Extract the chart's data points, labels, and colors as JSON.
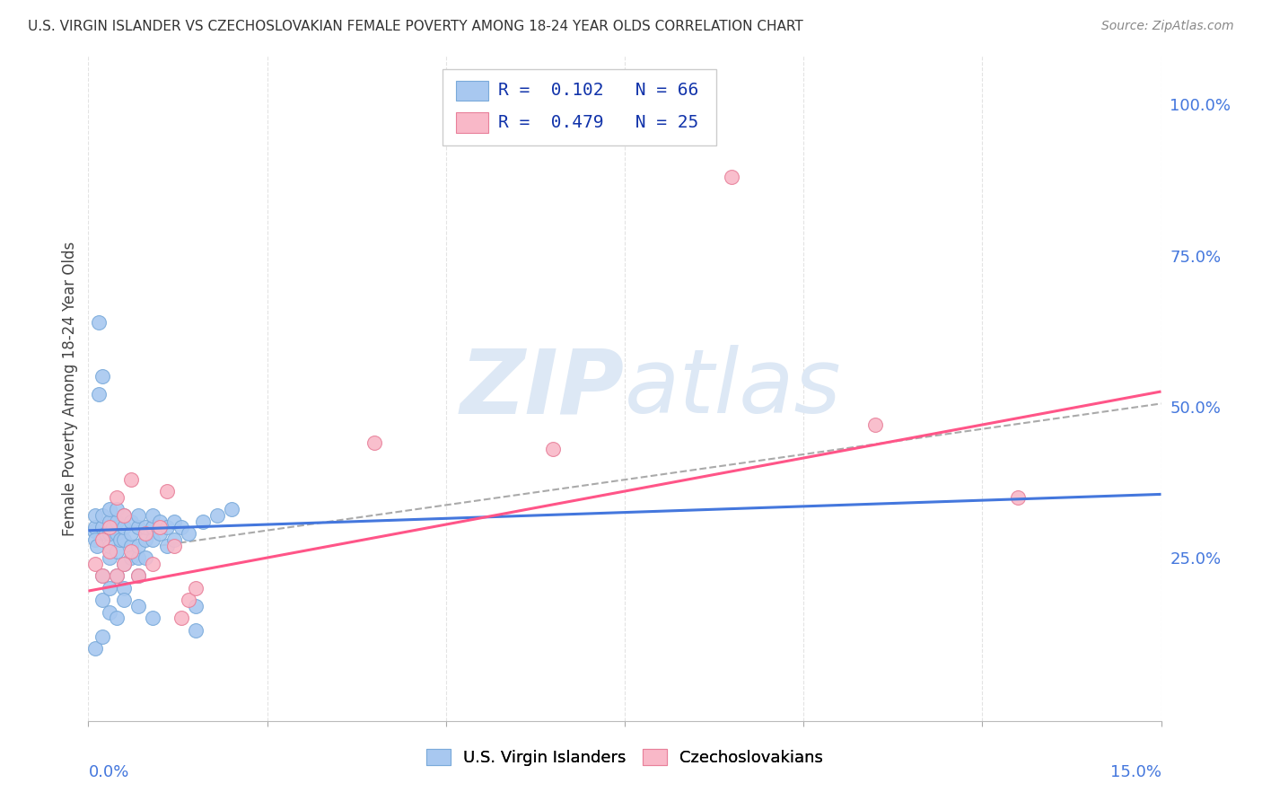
{
  "title": "U.S. VIRGIN ISLANDER VS CZECHOSLOVAKIAN FEMALE POVERTY AMONG 18-24 YEAR OLDS CORRELATION CHART",
  "source": "Source: ZipAtlas.com",
  "ylabel": "Female Poverty Among 18-24 Year Olds",
  "vi_color": "#a8c8f0",
  "vi_edge_color": "#7aaada",
  "cz_color": "#f9b8c8",
  "cz_edge_color": "#e8809a",
  "vi_line_color": "#4477dd",
  "cz_line_color": "#ff5588",
  "ref_line_color": "#aaaaaa",
  "watermark_color": "#dde8f5",
  "background_color": "#ffffff",
  "grid_color": "#dddddd",
  "right_tick_color": "#4477dd",
  "title_color": "#333333",
  "source_color": "#888888",
  "legend_text_color": "#1133aa",
  "xlim": [
    0.0,
    0.15
  ],
  "ylim": [
    -0.02,
    1.08
  ],
  "right_yticks": [
    1.0,
    0.75,
    0.5,
    0.25
  ],
  "right_yticklabels": [
    "100.0%",
    "75.0%",
    "50.0%",
    "25.0%"
  ],
  "vi_trend": [
    0.0,
    0.15,
    0.295,
    0.355
  ],
  "cz_trend": [
    0.0,
    0.15,
    0.195,
    0.525
  ],
  "ref_trend": [
    0.01,
    0.15,
    0.27,
    0.505
  ],
  "vi_x": [
    0.0008,
    0.001,
    0.001,
    0.001,
    0.0012,
    0.0015,
    0.0015,
    0.002,
    0.002,
    0.002,
    0.002,
    0.002,
    0.0025,
    0.003,
    0.003,
    0.003,
    0.003,
    0.003,
    0.003,
    0.003,
    0.0035,
    0.004,
    0.004,
    0.004,
    0.004,
    0.004,
    0.0045,
    0.005,
    0.005,
    0.005,
    0.005,
    0.005,
    0.005,
    0.006,
    0.006,
    0.006,
    0.006,
    0.007,
    0.007,
    0.007,
    0.007,
    0.007,
    0.008,
    0.008,
    0.008,
    0.009,
    0.009,
    0.009,
    0.01,
    0.01,
    0.011,
    0.011,
    0.012,
    0.012,
    0.013,
    0.014,
    0.015,
    0.016,
    0.018,
    0.02,
    0.001,
    0.002,
    0.004,
    0.007,
    0.009,
    0.015
  ],
  "vi_y": [
    0.295,
    0.3,
    0.32,
    0.28,
    0.27,
    0.52,
    0.64,
    0.3,
    0.32,
    0.55,
    0.22,
    0.18,
    0.29,
    0.25,
    0.27,
    0.29,
    0.31,
    0.33,
    0.2,
    0.16,
    0.3,
    0.26,
    0.29,
    0.31,
    0.33,
    0.22,
    0.28,
    0.24,
    0.28,
    0.3,
    0.32,
    0.2,
    0.18,
    0.27,
    0.29,
    0.31,
    0.25,
    0.25,
    0.27,
    0.3,
    0.32,
    0.22,
    0.28,
    0.3,
    0.25,
    0.28,
    0.3,
    0.32,
    0.29,
    0.31,
    0.3,
    0.27,
    0.31,
    0.28,
    0.3,
    0.29,
    0.13,
    0.31,
    0.32,
    0.33,
    0.1,
    0.12,
    0.15,
    0.17,
    0.15,
    0.17
  ],
  "cz_x": [
    0.001,
    0.002,
    0.002,
    0.003,
    0.003,
    0.004,
    0.004,
    0.005,
    0.005,
    0.006,
    0.006,
    0.007,
    0.008,
    0.009,
    0.01,
    0.011,
    0.012,
    0.013,
    0.014,
    0.015,
    0.04,
    0.065,
    0.09,
    0.11,
    0.13
  ],
  "cz_y": [
    0.24,
    0.22,
    0.28,
    0.26,
    0.3,
    0.22,
    0.35,
    0.24,
    0.32,
    0.26,
    0.38,
    0.22,
    0.29,
    0.24,
    0.3,
    0.36,
    0.27,
    0.15,
    0.18,
    0.2,
    0.44,
    0.43,
    0.88,
    0.47,
    0.35
  ]
}
